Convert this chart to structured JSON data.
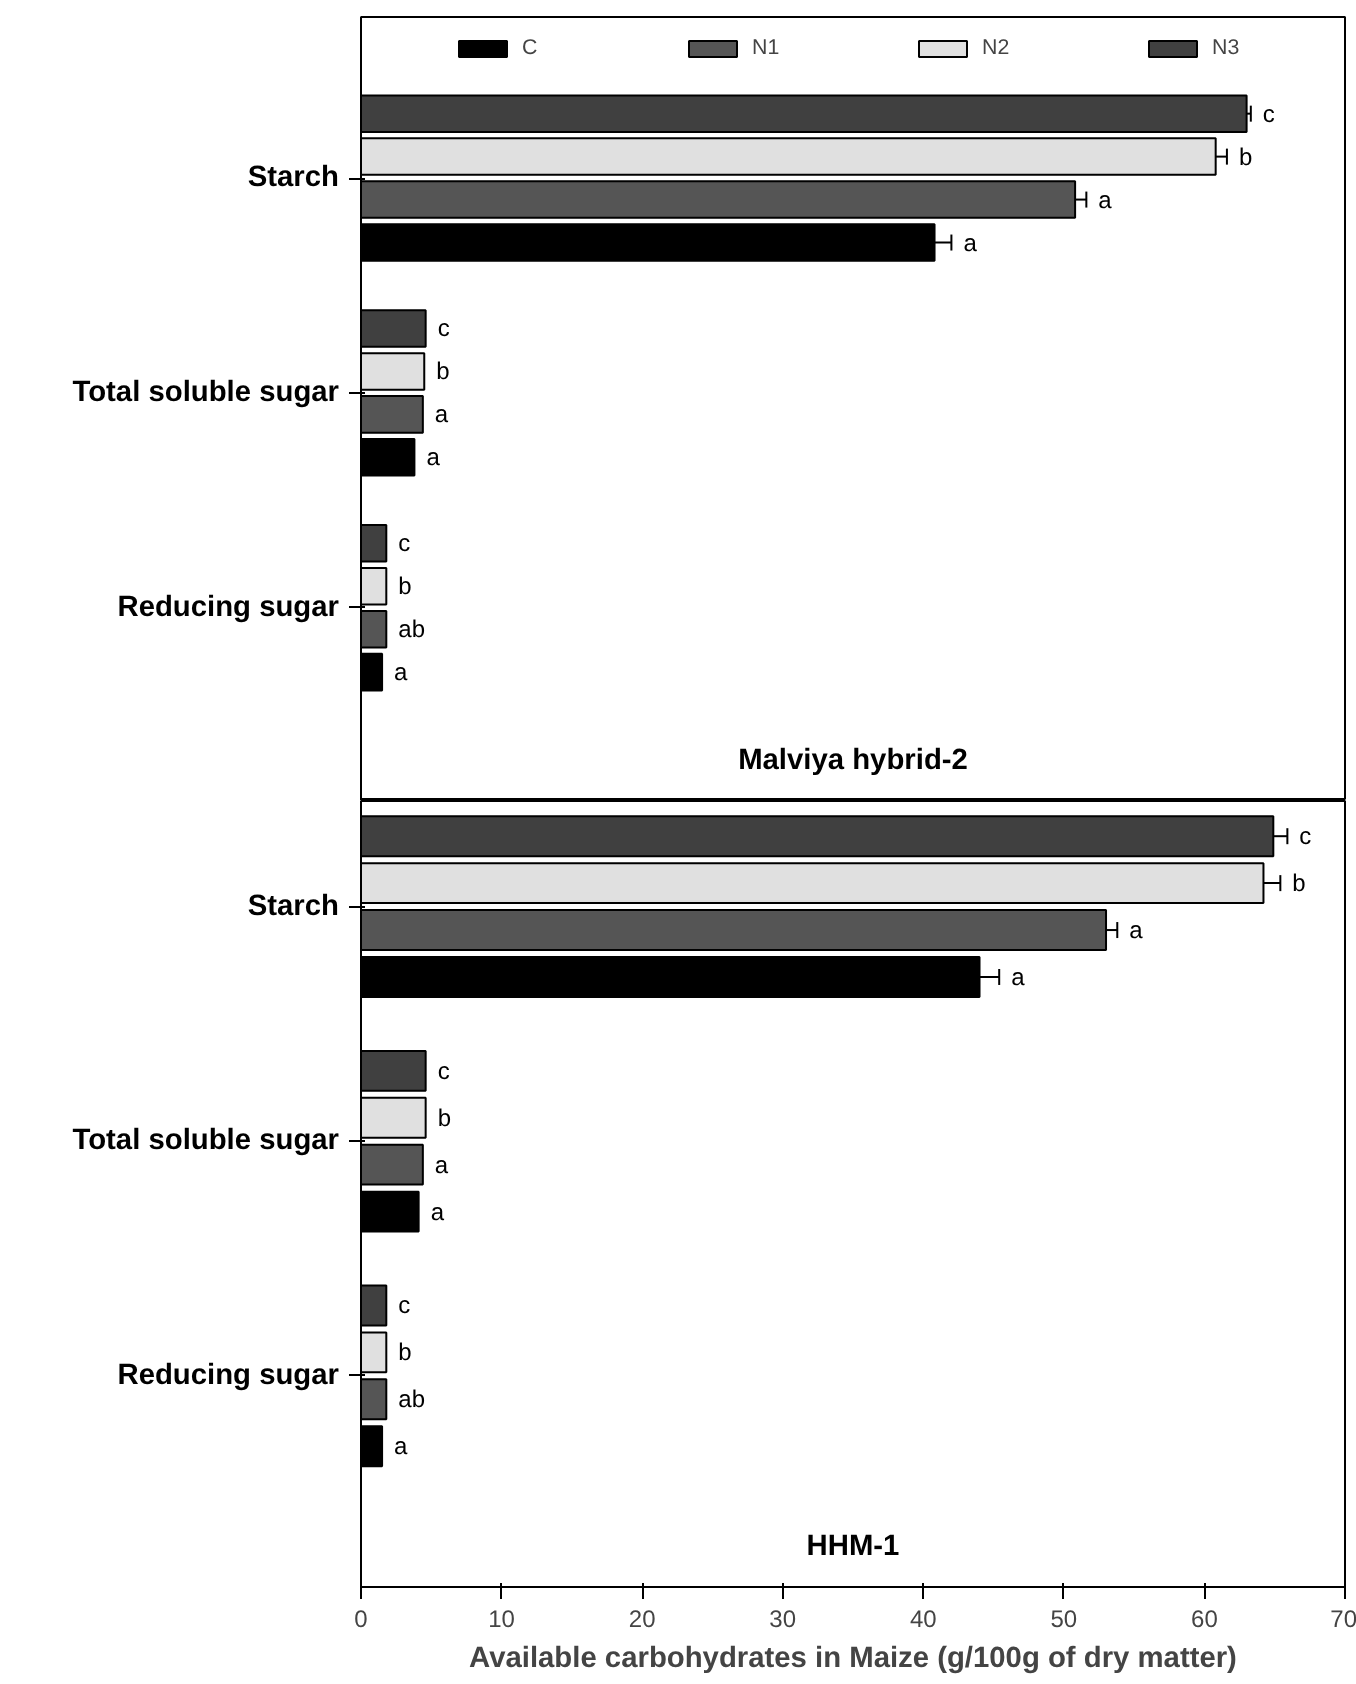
{
  "chart_data": [
    {
      "type": "bar",
      "orientation": "horizontal",
      "title": "Malviya hybrid-2",
      "categories": [
        "Starch",
        "Total soluble sugar",
        "Reducing sugar"
      ],
      "xlim": [
        0,
        70
      ],
      "xticks": [
        0,
        10,
        20,
        30,
        40,
        50,
        60,
        70
      ],
      "tick_labels": "y",
      "grid": false,
      "legend": "top",
      "series": [
        {
          "name": "C",
          "color": "#000000",
          "values": [
            40.8,
            3.8,
            1.5
          ],
          "errors": [
            1.2,
            null,
            null
          ],
          "value_labels": [
            "a",
            "a",
            "a"
          ]
        },
        {
          "name": "N1",
          "color": "#555555",
          "values": [
            50.8,
            4.4,
            1.8
          ],
          "errors": [
            0.8,
            null,
            null
          ],
          "value_labels": [
            "a",
            "a",
            "ab"
          ]
        },
        {
          "name": "N2",
          "color": "#e0e0e0",
          "values": [
            60.8,
            4.5,
            1.8
          ],
          "errors": [
            0.8,
            null,
            null
          ],
          "value_labels": [
            "b",
            "b",
            "b"
          ]
        },
        {
          "name": "N3",
          "color": "#404040",
          "values": [
            63.0,
            4.6,
            1.8
          ],
          "errors": [
            0.3,
            null,
            null
          ],
          "value_labels": [
            "c",
            "c",
            "c"
          ]
        }
      ]
    },
    {
      "type": "bar",
      "orientation": "horizontal",
      "title": "HHM-1",
      "xlabel": "Available carbohydrates in Maize (g/100g of dry matter)",
      "categories": [
        "Starch",
        "Total soluble sugar",
        "Reducing sugar"
      ],
      "xlim": [
        0,
        70
      ],
      "xticks": [
        0,
        10,
        20,
        30,
        40,
        50,
        60,
        70
      ],
      "grid": false,
      "series": [
        {
          "color": "#000000",
          "values": [
            44.0,
            4.1,
            1.5
          ],
          "errors": [
            1.4,
            null,
            null
          ],
          "value_labels": [
            "a",
            "a",
            "a"
          ]
        },
        {
          "color": "#555555",
          "values": [
            53.0,
            4.4,
            1.8
          ],
          "errors": [
            0.8,
            null,
            null
          ],
          "value_labels": [
            "a",
            "a",
            "ab"
          ]
        },
        {
          "color": "#e0e0e0",
          "values": [
            64.2,
            4.6,
            1.8
          ],
          "errors": [
            1.2,
            null,
            null
          ],
          "value_labels": [
            "b",
            "b",
            "b"
          ]
        },
        {
          "color": "#404040",
          "values": [
            64.9,
            4.6,
            1.8
          ],
          "errors": [
            1.0,
            null,
            null
          ],
          "value_labels": [
            "c",
            "c",
            "c"
          ]
        }
      ]
    }
  ]
}
